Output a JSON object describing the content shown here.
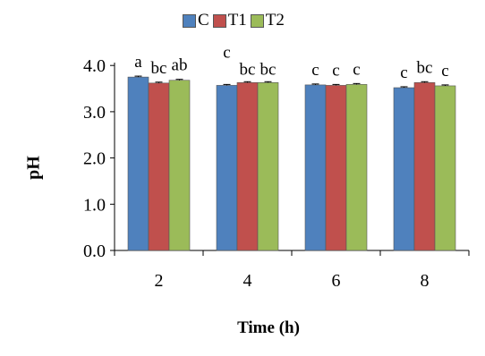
{
  "chart_data": {
    "type": "bar",
    "categories": [
      "2",
      "4",
      "6",
      "8"
    ],
    "series": [
      {
        "name": "C",
        "color": "#4F81BD",
        "values": [
          3.75,
          3.57,
          3.58,
          3.52
        ],
        "errors": [
          0.02,
          0.02,
          0.02,
          0.02
        ],
        "letters": [
          "a",
          "c",
          "c",
          "c"
        ]
      },
      {
        "name": "T1",
        "color": "#C0504D",
        "values": [
          3.62,
          3.63,
          3.57,
          3.63
        ],
        "errors": [
          0.02,
          0.02,
          0.02,
          0.02
        ],
        "letters": [
          "bc",
          "bc",
          "c",
          "bc"
        ]
      },
      {
        "name": "T2",
        "color": "#9BBB59",
        "values": [
          3.68,
          3.63,
          3.59,
          3.56
        ],
        "errors": [
          0.02,
          0.02,
          0.02,
          0.02
        ],
        "letters": [
          "ab",
          "bc",
          "c",
          "c"
        ]
      }
    ],
    "yticks": [
      "0.0",
      "1.0",
      "2.0",
      "3.0",
      "4.0"
    ],
    "ylim": [
      0,
      4
    ],
    "xlabel": "Time (h)",
    "ylabel": "pH",
    "legend_position": "top"
  }
}
